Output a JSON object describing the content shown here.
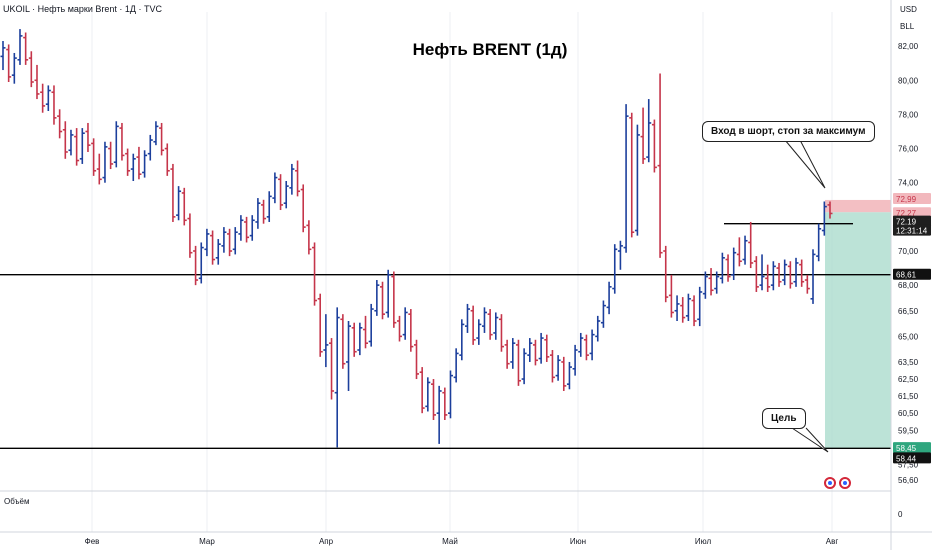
{
  "header": {
    "symbol_info": "UKOIL · Нефть марки Brent · 1Д · TVC",
    "currency": "USD",
    "unit": "BLL",
    "volume_label": "Объём"
  },
  "colors": {
    "up": "#1c3f9c",
    "down": "#c5354a",
    "stop_zone": "#f2b8bd",
    "target_zone": "#a6d9c9"
  },
  "callouts": {
    "entry": "Вход в шорт, стоп за максимум",
    "target": "Цель"
  },
  "chart_data": {
    "type": "ohlc",
    "title": "Нефть BRENT (1д)",
    "ylim": [
      56.0,
      84.0
    ],
    "y_ticks": [
      "82,00",
      "80,00",
      "78,00",
      "76,00",
      "74,00",
      "70,00",
      "68,00",
      "66,50",
      "65,00",
      "63,50",
      "62,50",
      "61,50",
      "60,50",
      "59,50",
      "57,50",
      "56,60"
    ],
    "x_ticks": [
      "Фев",
      "Мар",
      "Апр",
      "Май",
      "Июн",
      "Июл",
      "Авг"
    ],
    "volume_axis": "0",
    "price_tags": [
      {
        "label": "72,99",
        "value": 72.99,
        "kind": "stop"
      },
      {
        "label": "72,27",
        "value": 72.27,
        "kind": "stop"
      },
      {
        "label": "72,19",
        "value": 72.19,
        "kind": "current"
      },
      {
        "label": "12:31:14",
        "value": 71.55,
        "kind": "current"
      },
      {
        "label": "68,61",
        "value": 68.61,
        "kind": "level"
      },
      {
        "label": "58,45",
        "value": 58.45,
        "kind": "target"
      },
      {
        "label": "58,44",
        "value": 58.44,
        "kind": "level"
      }
    ],
    "horizontal_levels": [
      68.61,
      58.44
    ],
    "short_position": {
      "entry": 72.27,
      "stop": 72.99,
      "target": 58.45
    },
    "highs_line": 71.6,
    "ohlc": [
      {
        "o": 81.4,
        "h": 82.3,
        "l": 80.6,
        "c": 81.9
      },
      {
        "o": 81.8,
        "h": 82.1,
        "l": 79.9,
        "c": 80.2
      },
      {
        "o": 80.3,
        "h": 81.6,
        "l": 79.8,
        "c": 81.3
      },
      {
        "o": 81.2,
        "h": 83.0,
        "l": 80.9,
        "c": 82.6
      },
      {
        "o": 82.5,
        "h": 82.8,
        "l": 80.9,
        "c": 81.2
      },
      {
        "o": 81.3,
        "h": 81.7,
        "l": 79.6,
        "c": 79.9
      },
      {
        "o": 80.0,
        "h": 80.9,
        "l": 78.9,
        "c": 79.2
      },
      {
        "o": 79.3,
        "h": 79.8,
        "l": 78.1,
        "c": 78.5
      },
      {
        "o": 78.6,
        "h": 79.7,
        "l": 78.2,
        "c": 79.4
      },
      {
        "o": 79.3,
        "h": 79.7,
        "l": 77.4,
        "c": 77.8
      },
      {
        "o": 77.9,
        "h": 78.3,
        "l": 76.6,
        "c": 77.0
      },
      {
        "o": 77.1,
        "h": 77.6,
        "l": 75.4,
        "c": 75.8
      },
      {
        "o": 75.9,
        "h": 77.1,
        "l": 75.6,
        "c": 76.8
      },
      {
        "o": 76.7,
        "h": 77.2,
        "l": 75.0,
        "c": 75.3
      },
      {
        "o": 75.4,
        "h": 77.2,
        "l": 75.1,
        "c": 76.9
      },
      {
        "o": 77.0,
        "h": 77.5,
        "l": 75.8,
        "c": 76.2
      },
      {
        "o": 76.3,
        "h": 76.6,
        "l": 74.4,
        "c": 74.7
      },
      {
        "o": 74.8,
        "h": 75.7,
        "l": 73.9,
        "c": 74.2
      },
      {
        "o": 74.3,
        "h": 76.4,
        "l": 74.0,
        "c": 76.1
      },
      {
        "o": 76.0,
        "h": 76.4,
        "l": 74.8,
        "c": 75.1
      },
      {
        "o": 75.2,
        "h": 77.6,
        "l": 74.9,
        "c": 77.3
      },
      {
        "o": 77.2,
        "h": 77.5,
        "l": 75.3,
        "c": 75.6
      },
      {
        "o": 75.7,
        "h": 76.0,
        "l": 74.4,
        "c": 74.7
      },
      {
        "o": 74.8,
        "h": 75.7,
        "l": 74.1,
        "c": 75.4
      },
      {
        "o": 75.5,
        "h": 76.1,
        "l": 74.2,
        "c": 74.5
      },
      {
        "o": 74.6,
        "h": 75.9,
        "l": 74.3,
        "c": 75.6
      },
      {
        "o": 75.7,
        "h": 76.8,
        "l": 75.3,
        "c": 76.5
      },
      {
        "o": 76.4,
        "h": 77.6,
        "l": 76.2,
        "c": 77.3
      },
      {
        "o": 77.2,
        "h": 77.5,
        "l": 75.6,
        "c": 75.9
      },
      {
        "o": 76.0,
        "h": 76.3,
        "l": 74.4,
        "c": 74.7
      },
      {
        "o": 74.8,
        "h": 75.1,
        "l": 71.7,
        "c": 72.0
      },
      {
        "o": 72.1,
        "h": 73.8,
        "l": 71.8,
        "c": 73.5
      },
      {
        "o": 73.4,
        "h": 73.7,
        "l": 71.5,
        "c": 71.8
      },
      {
        "o": 71.9,
        "h": 72.2,
        "l": 69.6,
        "c": 69.9
      },
      {
        "o": 70.0,
        "h": 70.3,
        "l": 68.0,
        "c": 68.3
      },
      {
        "o": 68.4,
        "h": 70.5,
        "l": 68.1,
        "c": 70.2
      },
      {
        "o": 70.1,
        "h": 71.3,
        "l": 69.7,
        "c": 71.0
      },
      {
        "o": 70.9,
        "h": 71.2,
        "l": 69.2,
        "c": 69.5
      },
      {
        "o": 69.6,
        "h": 70.7,
        "l": 69.2,
        "c": 70.4
      },
      {
        "o": 70.3,
        "h": 71.4,
        "l": 69.9,
        "c": 71.1
      },
      {
        "o": 71.0,
        "h": 71.3,
        "l": 69.7,
        "c": 70.0
      },
      {
        "o": 70.1,
        "h": 71.4,
        "l": 69.8,
        "c": 71.1
      },
      {
        "o": 71.0,
        "h": 72.1,
        "l": 70.6,
        "c": 71.8
      },
      {
        "o": 71.7,
        "h": 72.0,
        "l": 70.5,
        "c": 70.8
      },
      {
        "o": 70.9,
        "h": 72.1,
        "l": 70.6,
        "c": 71.8
      },
      {
        "o": 71.7,
        "h": 73.1,
        "l": 71.3,
        "c": 72.8
      },
      {
        "o": 72.7,
        "h": 73.0,
        "l": 71.6,
        "c": 71.9
      },
      {
        "o": 72.0,
        "h": 73.5,
        "l": 71.7,
        "c": 73.2
      },
      {
        "o": 73.1,
        "h": 74.6,
        "l": 72.8,
        "c": 74.3
      },
      {
        "o": 74.2,
        "h": 74.5,
        "l": 72.4,
        "c": 72.7
      },
      {
        "o": 72.8,
        "h": 74.1,
        "l": 72.5,
        "c": 73.8
      },
      {
        "o": 73.7,
        "h": 75.1,
        "l": 73.3,
        "c": 74.8
      },
      {
        "o": 74.7,
        "h": 75.3,
        "l": 73.2,
        "c": 73.5
      },
      {
        "o": 73.6,
        "h": 73.9,
        "l": 71.1,
        "c": 71.4
      },
      {
        "o": 71.5,
        "h": 71.8,
        "l": 69.8,
        "c": 70.1
      },
      {
        "o": 70.2,
        "h": 70.5,
        "l": 66.8,
        "c": 67.1
      },
      {
        "o": 67.2,
        "h": 67.5,
        "l": 63.8,
        "c": 64.1
      },
      {
        "o": 64.2,
        "h": 66.3,
        "l": 63.2,
        "c": 64.5
      },
      {
        "o": 64.6,
        "h": 64.9,
        "l": 61.3,
        "c": 61.8
      },
      {
        "o": 61.7,
        "h": 66.7,
        "l": 58.5,
        "c": 66.1
      },
      {
        "o": 66.0,
        "h": 66.3,
        "l": 63.1,
        "c": 63.4
      },
      {
        "o": 63.5,
        "h": 65.9,
        "l": 61.8,
        "c": 65.6
      },
      {
        "o": 65.5,
        "h": 65.8,
        "l": 63.8,
        "c": 64.1
      },
      {
        "o": 64.2,
        "h": 65.8,
        "l": 63.9,
        "c": 65.5
      },
      {
        "o": 65.4,
        "h": 66.2,
        "l": 64.3,
        "c": 64.6
      },
      {
        "o": 64.7,
        "h": 66.9,
        "l": 64.4,
        "c": 66.6
      },
      {
        "o": 66.5,
        "h": 68.3,
        "l": 66.2,
        "c": 68.0
      },
      {
        "o": 67.9,
        "h": 68.2,
        "l": 66.0,
        "c": 66.3
      },
      {
        "o": 66.4,
        "h": 68.9,
        "l": 66.1,
        "c": 68.6
      },
      {
        "o": 68.5,
        "h": 68.8,
        "l": 65.5,
        "c": 65.8
      },
      {
        "o": 65.9,
        "h": 66.2,
        "l": 64.7,
        "c": 65.0
      },
      {
        "o": 65.1,
        "h": 66.7,
        "l": 64.8,
        "c": 66.4
      },
      {
        "o": 66.3,
        "h": 66.6,
        "l": 64.1,
        "c": 64.4
      },
      {
        "o": 64.5,
        "h": 64.8,
        "l": 62.5,
        "c": 62.8
      },
      {
        "o": 62.9,
        "h": 63.2,
        "l": 60.5,
        "c": 60.8
      },
      {
        "o": 60.9,
        "h": 62.6,
        "l": 60.6,
        "c": 62.3
      },
      {
        "o": 62.2,
        "h": 62.5,
        "l": 60.1,
        "c": 60.4
      },
      {
        "o": 60.5,
        "h": 62.1,
        "l": 58.7,
        "c": 61.8
      },
      {
        "o": 61.7,
        "h": 62.0,
        "l": 60.1,
        "c": 60.4
      },
      {
        "o": 60.5,
        "h": 63.0,
        "l": 60.2,
        "c": 62.7
      },
      {
        "o": 62.6,
        "h": 64.3,
        "l": 62.3,
        "c": 64.0
      },
      {
        "o": 63.9,
        "h": 66.0,
        "l": 63.6,
        "c": 65.7
      },
      {
        "o": 65.6,
        "h": 66.9,
        "l": 65.2,
        "c": 66.6
      },
      {
        "o": 66.5,
        "h": 66.8,
        "l": 64.5,
        "c": 64.8
      },
      {
        "o": 64.9,
        "h": 66.0,
        "l": 64.5,
        "c": 65.7
      },
      {
        "o": 65.6,
        "h": 66.7,
        "l": 65.2,
        "c": 66.4
      },
      {
        "o": 66.3,
        "h": 66.6,
        "l": 64.8,
        "c": 65.1
      },
      {
        "o": 65.2,
        "h": 66.4,
        "l": 64.8,
        "c": 66.1
      },
      {
        "o": 66.0,
        "h": 66.3,
        "l": 64.1,
        "c": 64.4
      },
      {
        "o": 64.5,
        "h": 64.8,
        "l": 63.1,
        "c": 63.4
      },
      {
        "o": 63.5,
        "h": 64.9,
        "l": 63.1,
        "c": 64.6
      },
      {
        "o": 64.5,
        "h": 64.8,
        "l": 62.1,
        "c": 62.4
      },
      {
        "o": 62.5,
        "h": 64.3,
        "l": 62.2,
        "c": 64.0
      },
      {
        "o": 63.9,
        "h": 64.9,
        "l": 63.5,
        "c": 64.6
      },
      {
        "o": 64.5,
        "h": 64.8,
        "l": 63.3,
        "c": 63.6
      },
      {
        "o": 63.7,
        "h": 65.2,
        "l": 63.4,
        "c": 64.9
      },
      {
        "o": 64.8,
        "h": 65.1,
        "l": 63.5,
        "c": 63.8
      },
      {
        "o": 63.9,
        "h": 64.2,
        "l": 62.3,
        "c": 62.6
      },
      {
        "o": 62.7,
        "h": 63.9,
        "l": 62.4,
        "c": 63.6
      },
      {
        "o": 63.5,
        "h": 63.8,
        "l": 61.8,
        "c": 62.1
      },
      {
        "o": 62.2,
        "h": 63.5,
        "l": 61.9,
        "c": 63.2
      },
      {
        "o": 63.1,
        "h": 64.5,
        "l": 62.7,
        "c": 64.2
      },
      {
        "o": 64.1,
        "h": 65.2,
        "l": 63.8,
        "c": 64.9
      },
      {
        "o": 64.8,
        "h": 65.1,
        "l": 63.6,
        "c": 63.9
      },
      {
        "o": 64.0,
        "h": 65.4,
        "l": 63.6,
        "c": 65.1
      },
      {
        "o": 65.0,
        "h": 66.2,
        "l": 64.7,
        "c": 65.9
      },
      {
        "o": 65.8,
        "h": 67.1,
        "l": 65.5,
        "c": 66.8
      },
      {
        "o": 66.7,
        "h": 68.2,
        "l": 66.3,
        "c": 67.9
      },
      {
        "o": 67.8,
        "h": 70.4,
        "l": 67.5,
        "c": 70.1
      },
      {
        "o": 70.0,
        "h": 70.6,
        "l": 68.9,
        "c": 70.3
      },
      {
        "o": 70.2,
        "h": 78.6,
        "l": 69.9,
        "c": 77.9
      },
      {
        "o": 77.8,
        "h": 78.1,
        "l": 70.8,
        "c": 71.1
      },
      {
        "o": 71.2,
        "h": 77.4,
        "l": 70.9,
        "c": 76.8
      },
      {
        "o": 76.7,
        "h": 78.4,
        "l": 75.1,
        "c": 75.4
      },
      {
        "o": 75.5,
        "h": 78.9,
        "l": 75.2,
        "c": 77.5
      },
      {
        "o": 77.4,
        "h": 77.7,
        "l": 74.6,
        "c": 74.9
      },
      {
        "o": 75.0,
        "h": 80.4,
        "l": 69.6,
        "c": 69.9
      },
      {
        "o": 70.0,
        "h": 70.3,
        "l": 67.0,
        "c": 67.3
      },
      {
        "o": 67.4,
        "h": 68.6,
        "l": 66.1,
        "c": 66.4
      },
      {
        "o": 66.5,
        "h": 67.4,
        "l": 65.9,
        "c": 66.9
      },
      {
        "o": 66.8,
        "h": 67.3,
        "l": 65.8,
        "c": 66.1
      },
      {
        "o": 66.2,
        "h": 67.5,
        "l": 65.9,
        "c": 67.2
      },
      {
        "o": 67.1,
        "h": 67.4,
        "l": 65.6,
        "c": 65.9
      },
      {
        "o": 66.0,
        "h": 67.9,
        "l": 65.6,
        "c": 67.6
      },
      {
        "o": 67.5,
        "h": 68.8,
        "l": 67.2,
        "c": 68.5
      },
      {
        "o": 68.4,
        "h": 69.0,
        "l": 67.4,
        "c": 67.7
      },
      {
        "o": 67.8,
        "h": 68.8,
        "l": 67.5,
        "c": 68.5
      },
      {
        "o": 68.4,
        "h": 69.9,
        "l": 68.1,
        "c": 69.6
      },
      {
        "o": 69.5,
        "h": 69.8,
        "l": 68.2,
        "c": 68.5
      },
      {
        "o": 68.6,
        "h": 70.2,
        "l": 68.3,
        "c": 69.9
      },
      {
        "o": 69.8,
        "h": 70.8,
        "l": 69.1,
        "c": 69.4
      },
      {
        "o": 69.5,
        "h": 70.9,
        "l": 69.2,
        "c": 70.6
      },
      {
        "o": 70.5,
        "h": 71.7,
        "l": 69.0,
        "c": 69.3
      },
      {
        "o": 69.4,
        "h": 69.7,
        "l": 67.6,
        "c": 67.9
      },
      {
        "o": 68.0,
        "h": 69.8,
        "l": 67.7,
        "c": 68.5
      },
      {
        "o": 68.4,
        "h": 69.2,
        "l": 67.6,
        "c": 67.9
      },
      {
        "o": 68.0,
        "h": 69.4,
        "l": 67.7,
        "c": 69.1
      },
      {
        "o": 69.0,
        "h": 69.3,
        "l": 67.9,
        "c": 68.2
      },
      {
        "o": 68.3,
        "h": 69.5,
        "l": 68.0,
        "c": 69.2
      },
      {
        "o": 69.1,
        "h": 69.4,
        "l": 67.8,
        "c": 68.1
      },
      {
        "o": 68.2,
        "h": 69.6,
        "l": 67.9,
        "c": 69.3
      },
      {
        "o": 69.2,
        "h": 69.5,
        "l": 67.9,
        "c": 68.2
      },
      {
        "o": 68.3,
        "h": 68.6,
        "l": 67.5,
        "c": 67.8
      },
      {
        "o": 67.2,
        "h": 70.1,
        "l": 66.9,
        "c": 69.8
      },
      {
        "o": 69.7,
        "h": 71.6,
        "l": 69.4,
        "c": 71.3
      },
      {
        "o": 71.2,
        "h": 72.9,
        "l": 70.9,
        "c": 72.6
      },
      {
        "o": 72.7,
        "h": 72.9,
        "l": 71.9,
        "c": 72.2
      }
    ]
  }
}
